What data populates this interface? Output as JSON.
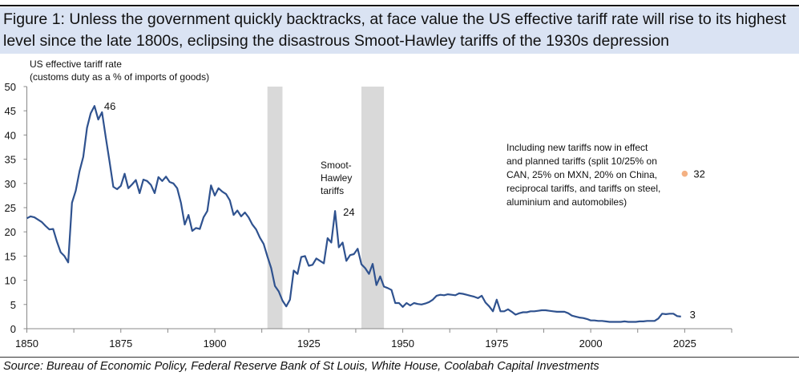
{
  "title": "Figure 1: Unless the government quickly backtracks, at face value the US effective tariff rate will rise to its highest level since the late 1800s, eclipsing the disastrous Smoot-Hawley tariffs of the 1930s depression",
  "source": "Source: Bureau of Economic Policy, Federal Reserve Bank of St Louis, White House, Coolabah Capital Investments",
  "chart_data": {
    "type": "line",
    "ylabel_line1": "US effective tariff rate",
    "ylabel_line2": "(customs duty as a % of imports of goods)",
    "xlim": [
      1850,
      2037.5
    ],
    "ylim": [
      0,
      50
    ],
    "yticks": [
      0,
      5,
      10,
      15,
      20,
      25,
      30,
      35,
      40,
      45,
      50
    ],
    "xticks": [
      1850,
      1875,
      1900,
      1925,
      1950,
      1975,
      2000,
      2025
    ],
    "grid": false,
    "line_color": "#2f528f",
    "shade_color": "#d9d9d9",
    "shaded_periods": [
      [
        1914,
        1918
      ],
      [
        1939,
        1945
      ]
    ],
    "x_start": 1850,
    "values": [
      22.8,
      23.2,
      23.0,
      22.5,
      22.0,
      21.2,
      20.5,
      20.6,
      18.0,
      15.8,
      15.0,
      13.7,
      26.0,
      28.5,
      32.5,
      35.5,
      41.5,
      44.5,
      46.0,
      43.2,
      44.7,
      39.5,
      34.5,
      29.3,
      28.8,
      29.5,
      32.0,
      29.0,
      29.8,
      30.7,
      28.0,
      30.8,
      30.5,
      29.7,
      28.0,
      31.3,
      30.5,
      31.4,
      30.3,
      30.0,
      29.0,
      26.0,
      21.5,
      23.5,
      20.2,
      20.8,
      20.6,
      23.0,
      24.3,
      29.6,
      27.5,
      29.0,
      28.3,
      27.8,
      26.5,
      23.5,
      24.4,
      23.2,
      24.0,
      23.0,
      21.5,
      20.5,
      18.8,
      17.5,
      14.9,
      12.5,
      8.8,
      7.7,
      5.8,
      4.6,
      6.0,
      12.0,
      11.3,
      14.8,
      15.0,
      13.0,
      13.2,
      14.5,
      14.0,
      13.5,
      18.7,
      17.8,
      24.3,
      16.8,
      17.8,
      14.0,
      15.2,
      15.4,
      16.5,
      13.3,
      12.5,
      11.3,
      13.4,
      9.0,
      10.8,
      8.7,
      8.4,
      8.0,
      5.3,
      5.3,
      4.5,
      5.3,
      4.8,
      5.3,
      5.1,
      5.0,
      5.2,
      5.5,
      6.0,
      6.8,
      7.0,
      6.9,
      7.1,
      7.0,
      6.9,
      7.3,
      7.2,
      7.0,
      6.8,
      6.6,
      6.3,
      6.8,
      5.4,
      4.6,
      3.6,
      6.0,
      3.6,
      3.6,
      4.0,
      3.5,
      2.9,
      3.2,
      3.4,
      3.4,
      3.6,
      3.6,
      3.7,
      3.8,
      3.8,
      3.7,
      3.6,
      3.5,
      3.5,
      3.5,
      3.2,
      2.7,
      2.5,
      2.3,
      2.2,
      2.0,
      1.7,
      1.7,
      1.6,
      1.6,
      1.5,
      1.4,
      1.4,
      1.4,
      1.4,
      1.5,
      1.4,
      1.4,
      1.4,
      1.5,
      1.5,
      1.6,
      1.6,
      1.6,
      2.1,
      3.1,
      3.0,
      3.1,
      3.1,
      2.6,
      2.5
    ],
    "projection_point": {
      "x": 2025,
      "y": 32,
      "label": "32",
      "color": "#f4b183"
    },
    "annotations": {
      "peak_1868": {
        "x": 1868,
        "y": 46,
        "label": "46"
      },
      "smoot_hawley": {
        "x": 1932,
        "y": 24,
        "label": "24",
        "text_lines": [
          "Smoot-",
          "Hawley",
          "tariffs"
        ]
      },
      "latest": {
        "x": 2024,
        "y": 3,
        "label": "3"
      },
      "projection_note_lines": [
        "Including new tariffs now in effect",
        "and planned tariffs (split 10/25% on",
        "CAN, 25% on MXN, 20% on China,",
        "reciprocal tariffs, and tariffs on steel,",
        "aluminium and automobiles)"
      ]
    }
  }
}
